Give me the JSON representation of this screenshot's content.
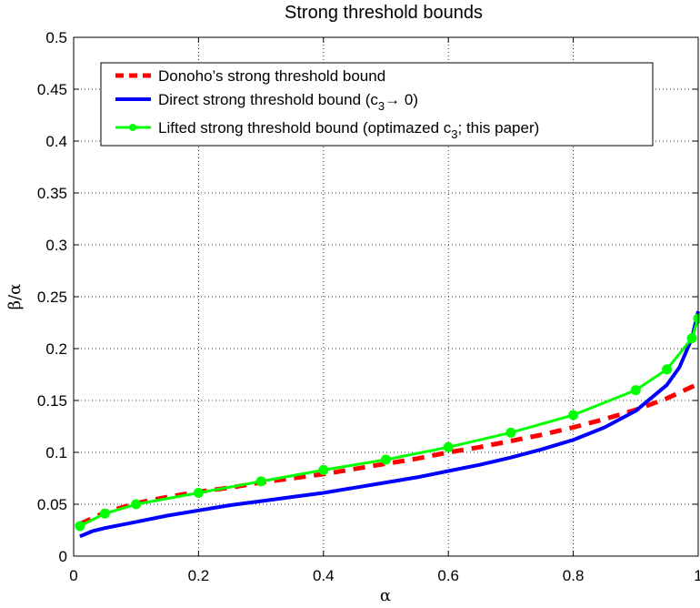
{
  "chart_data": {
    "type": "line",
    "title": "Strong threshold bounds",
    "xlabel": "α",
    "ylabel": "β/α",
    "xlim": [
      0,
      1
    ],
    "ylim": [
      0,
      0.5
    ],
    "xticks": [
      0,
      0.2,
      0.4,
      0.6,
      0.8,
      1
    ],
    "xtick_labels": [
      "0",
      "0.2",
      "0.4",
      "0.6",
      "0.8",
      "1"
    ],
    "yticks": [
      0,
      0.05,
      0.1,
      0.15,
      0.2,
      0.25,
      0.3,
      0.35,
      0.4,
      0.45,
      0.5
    ],
    "ytick_labels": [
      "0",
      "0.05",
      "0.1",
      "0.15",
      "0.2",
      "0.25",
      "0.3",
      "0.35",
      "0.4",
      "0.45",
      "0.5"
    ],
    "grid": true,
    "legend_position": "top-left",
    "series": [
      {
        "name": "Donoho’s strong threshold bound",
        "color": "#ff0000",
        "style": "dashed",
        "markers": false,
        "x": [
          0.01,
          0.05,
          0.1,
          0.15,
          0.2,
          0.25,
          0.3,
          0.35,
          0.4,
          0.45,
          0.5,
          0.55,
          0.6,
          0.65,
          0.7,
          0.75,
          0.8,
          0.85,
          0.9,
          0.95,
          1.0
        ],
        "y": [
          0.031,
          0.042,
          0.051,
          0.057,
          0.062,
          0.066,
          0.071,
          0.075,
          0.079,
          0.084,
          0.089,
          0.094,
          0.1,
          0.105,
          0.111,
          0.117,
          0.124,
          0.132,
          0.141,
          0.152,
          0.166
        ]
      },
      {
        "name": "Direct strong threshold bound (c3→ 0)",
        "legend_main": "Direct strong threshold bound (c",
        "legend_sub": "3",
        "legend_tail": "→ 0)",
        "color": "#0000ff",
        "style": "solid",
        "markers": false,
        "x": [
          0.01,
          0.03,
          0.05,
          0.1,
          0.15,
          0.2,
          0.25,
          0.3,
          0.35,
          0.4,
          0.45,
          0.5,
          0.55,
          0.6,
          0.65,
          0.7,
          0.75,
          0.8,
          0.85,
          0.9,
          0.95,
          0.97,
          0.99,
          1.0
        ],
        "y": [
          0.019,
          0.024,
          0.027,
          0.033,
          0.039,
          0.044,
          0.049,
          0.053,
          0.057,
          0.061,
          0.066,
          0.071,
          0.076,
          0.082,
          0.088,
          0.095,
          0.103,
          0.112,
          0.124,
          0.14,
          0.165,
          0.182,
          0.21,
          0.236
        ]
      },
      {
        "name": "Lifted strong threshold bound (optimazed c3; this paper)",
        "legend_main": "Lifted strong threshold bound (optimazed c",
        "legend_sub": "3",
        "legend_tail": "; this paper)",
        "color": "#00ff00",
        "style": "solid",
        "markers": true,
        "x": [
          0.01,
          0.05,
          0.1,
          0.2,
          0.3,
          0.4,
          0.5,
          0.6,
          0.7,
          0.8,
          0.9,
          0.95,
          0.99,
          1.0
        ],
        "y": [
          0.029,
          0.041,
          0.05,
          0.061,
          0.072,
          0.083,
          0.093,
          0.105,
          0.119,
          0.136,
          0.16,
          0.18,
          0.21,
          0.229
        ]
      }
    ]
  }
}
